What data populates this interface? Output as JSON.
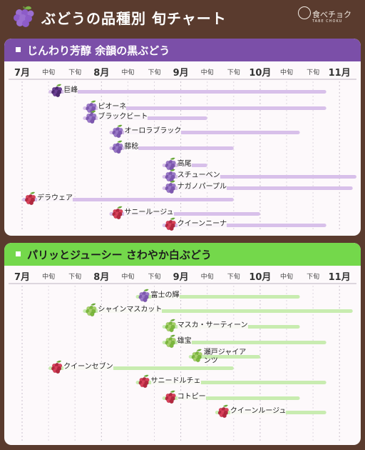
{
  "header": {
    "title": "ぶどうの品種別 旬チャート",
    "brand_name": "食べチョク",
    "brand_sub": "TABE CHOKU"
  },
  "chart_data": [
    {
      "type": "gantt",
      "title": "じんわり芳醇 余韻の黒ぶどう",
      "accent": "#7b4fa8",
      "bar_color": "#d8c0ea",
      "x_ticks": [
        "7月",
        "中旬",
        "下旬",
        "8月",
        "中旬",
        "下旬",
        "9月",
        "中旬",
        "下旬",
        "10月",
        "中旬",
        "下旬",
        "11月"
      ],
      "series": [
        {
          "name": "巨峰",
          "start": "8月上旬",
          "end": "11月上旬",
          "grape": "black",
          "start_idx": 1.0,
          "end_idx": 11.5
        },
        {
          "name": "ピオーネ",
          "start": "8月上旬",
          "end": "11月上旬",
          "grape": "purple",
          "start_idx": 2.3,
          "end_idx": 11.5
        },
        {
          "name": "ブラックビート",
          "start": "7月下旬",
          "end": "9月中旬",
          "grape": "purple",
          "start_idx": 2.3,
          "end_idx": 7.0
        },
        {
          "name": "オーロラブラック",
          "start": "8月中旬",
          "end": "10月下旬",
          "grape": "purple",
          "start_idx": 3.3,
          "end_idx": 10.5
        },
        {
          "name": "藤稔",
          "start": "8月中旬",
          "end": "9月下旬",
          "grape": "purple",
          "start_idx": 3.3,
          "end_idx": 8.0
        },
        {
          "name": "高尾",
          "start": "9月上旬",
          "end": "9月中旬",
          "grape": "purple",
          "start_idx": 5.3,
          "end_idx": 7.0
        },
        {
          "name": "スチューベン",
          "start": "9月上旬",
          "end": "11月下旬",
          "grape": "purple",
          "start_idx": 5.3,
          "end_idx": 13.5
        },
        {
          "name": "ナガノパープル",
          "start": "9月上旬",
          "end": "11月中旬",
          "grape": "purple",
          "start_idx": 5.3,
          "end_idx": 12.5
        },
        {
          "name": "デラウェア",
          "start": "7月上旬",
          "end": "9月下旬",
          "grape": "red",
          "start_idx": 0.0,
          "end_idx": 8.0
        },
        {
          "name": "サニールージュ",
          "start": "8月中旬",
          "end": "10月上旬",
          "grape": "red",
          "start_idx": 3.3,
          "end_idx": 9.0
        },
        {
          "name": "クイーンニーナ",
          "start": "9月上旬",
          "end": "10月下旬",
          "grape": "red",
          "start_idx": 5.3,
          "end_idx": 11.5
        }
      ]
    },
    {
      "type": "gantt",
      "title": "パリッとジューシー さわやか白ぶどう",
      "accent": "#74d84b",
      "bar_color": "#c8ecb0",
      "x_ticks": [
        "7月",
        "中旬",
        "下旬",
        "8月",
        "中旬",
        "下旬",
        "9月",
        "中旬",
        "下旬",
        "10月",
        "中旬",
        "下旬",
        "11月"
      ],
      "series": [
        {
          "name": "富士の輝",
          "start": "8月下旬",
          "end": "10月下旬",
          "grape": "purple",
          "start_idx": 4.3,
          "end_idx": 10.5
        },
        {
          "name": "シャインマスカット",
          "start": "8月上旬",
          "end": "11月下旬",
          "grape": "green",
          "start_idx": 2.3,
          "end_idx": 12.5
        },
        {
          "name": "マスカ・サーティーン",
          "start": "9月上旬",
          "end": "10月中旬",
          "grape": "green",
          "start_idx": 5.3,
          "end_idx": 10.5
        },
        {
          "name": "雄宝",
          "start": "9月上旬",
          "end": "11月上旬",
          "grape": "green",
          "start_idx": 5.3,
          "end_idx": 11.5
        },
        {
          "name": "瀬戸ジャイアンツ",
          "start": "9月中旬",
          "end": "10月中旬",
          "grape": "green",
          "start_idx": 6.3,
          "end_idx": 9.0
        },
        {
          "name": "クイーンセブン",
          "start": "7月下旬",
          "end": "9月下旬",
          "grape": "red",
          "start_idx": 1.0,
          "end_idx": 8.0
        },
        {
          "name": "サニードルチェ",
          "start": "8月中旬",
          "end": "11月上旬",
          "grape": "red",
          "start_idx": 4.3,
          "end_idx": 11.5
        },
        {
          "name": "コトピー",
          "start": "9月上旬",
          "end": "10月中旬",
          "grape": "red",
          "start_idx": 5.3,
          "end_idx": 10.5
        },
        {
          "name": "クイーンルージュ",
          "start": "9月中旬",
          "end": "11月中旬",
          "grape": "red",
          "start_idx": 7.3,
          "end_idx": 11.5
        }
      ]
    }
  ]
}
